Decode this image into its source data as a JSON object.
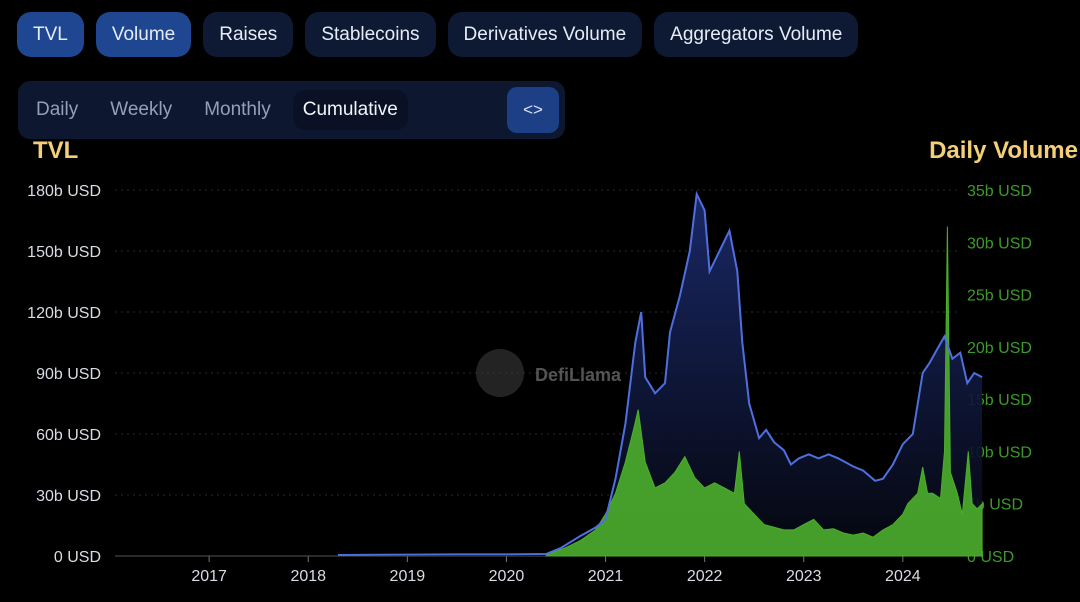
{
  "tabs": [
    {
      "label": "TVL",
      "active": true
    },
    {
      "label": "Volume",
      "active": true
    },
    {
      "label": "Raises",
      "active": false
    },
    {
      "label": "Stablecoins",
      "active": false
    },
    {
      "label": "Derivatives Volume",
      "active": false
    },
    {
      "label": "Aggregators Volume",
      "active": false
    }
  ],
  "range_options": [
    {
      "label": "Daily",
      "active": false
    },
    {
      "label": "Weekly",
      "active": false
    },
    {
      "label": "Monthly",
      "active": false
    },
    {
      "label": "Cumulative",
      "active": true
    }
  ],
  "embed_label": "<>",
  "watermark": "DefiLlama",
  "colors": {
    "tvl_line": "#4f6fe0",
    "tvl_fill_top": "#1b2a6b",
    "volume": "#4caf2c",
    "axis_left_text": "#d8dce4",
    "axis_right_text": "#3d9a2a",
    "axis_title": "#f3cf7a",
    "grid": "#2a2a2a"
  },
  "chart_data": {
    "type": "area",
    "x_axis": {
      "ticks": [
        "2017",
        "2018",
        "2019",
        "2020",
        "2021",
        "2022",
        "2023",
        "2024"
      ]
    },
    "y_left": {
      "title": "TVL",
      "ticks": [
        "0 USD",
        "30b USD",
        "60b USD",
        "90b USD",
        "120b USD",
        "150b USD",
        "180b USD"
      ],
      "range": [
        0,
        180
      ]
    },
    "y_right": {
      "title": "Daily Volume",
      "ticks": [
        "0 USD",
        "5b USD",
        "10b USD",
        "15b USD",
        "20b USD",
        "25b USD",
        "30b USD",
        "35b USD"
      ],
      "range": [
        0,
        35
      ]
    },
    "series": [
      {
        "name": "TVL",
        "axis": "left",
        "unit": "billion USD",
        "points": [
          [
            2018.3,
            0.5
          ],
          [
            2019.0,
            0.7
          ],
          [
            2019.5,
            0.8
          ],
          [
            2020.0,
            0.8
          ],
          [
            2020.4,
            1
          ],
          [
            2020.55,
            4
          ],
          [
            2020.75,
            10
          ],
          [
            2020.9,
            14
          ],
          [
            2021.0,
            18
          ],
          [
            2021.1,
            38
          ],
          [
            2021.2,
            65
          ],
          [
            2021.3,
            105
          ],
          [
            2021.36,
            120
          ],
          [
            2021.4,
            88
          ],
          [
            2021.5,
            80
          ],
          [
            2021.6,
            85
          ],
          [
            2021.65,
            110
          ],
          [
            2021.75,
            128
          ],
          [
            2021.85,
            150
          ],
          [
            2021.92,
            178
          ],
          [
            2022.0,
            170
          ],
          [
            2022.05,
            140
          ],
          [
            2022.15,
            150
          ],
          [
            2022.25,
            160
          ],
          [
            2022.33,
            140
          ],
          [
            2022.38,
            105
          ],
          [
            2022.45,
            75
          ],
          [
            2022.55,
            58
          ],
          [
            2022.62,
            62
          ],
          [
            2022.7,
            56
          ],
          [
            2022.8,
            52
          ],
          [
            2022.87,
            45
          ],
          [
            2022.95,
            48
          ],
          [
            2023.05,
            50
          ],
          [
            2023.15,
            48
          ],
          [
            2023.25,
            50
          ],
          [
            2023.35,
            48
          ],
          [
            2023.5,
            44
          ],
          [
            2023.6,
            42
          ],
          [
            2023.72,
            37
          ],
          [
            2023.8,
            38
          ],
          [
            2023.9,
            45
          ],
          [
            2024.0,
            55
          ],
          [
            2024.1,
            60
          ],
          [
            2024.2,
            90
          ],
          [
            2024.27,
            95
          ],
          [
            2024.35,
            102
          ],
          [
            2024.42,
            108
          ],
          [
            2024.5,
            97
          ],
          [
            2024.58,
            100
          ],
          [
            2024.65,
            85
          ],
          [
            2024.72,
            90
          ],
          [
            2024.8,
            88
          ]
        ]
      },
      {
        "name": "Daily Volume",
        "axis": "right",
        "unit": "billion USD",
        "points": [
          [
            2020.4,
            0.1
          ],
          [
            2020.6,
            0.8
          ],
          [
            2020.75,
            1.5
          ],
          [
            2020.9,
            2.5
          ],
          [
            2021.0,
            4
          ],
          [
            2021.1,
            6
          ],
          [
            2021.2,
            9
          ],
          [
            2021.28,
            12
          ],
          [
            2021.33,
            14
          ],
          [
            2021.4,
            9
          ],
          [
            2021.5,
            6.5
          ],
          [
            2021.6,
            7
          ],
          [
            2021.7,
            8
          ],
          [
            2021.8,
            9.5
          ],
          [
            2021.9,
            7.5
          ],
          [
            2022.0,
            6.5
          ],
          [
            2022.1,
            7
          ],
          [
            2022.2,
            6.5
          ],
          [
            2022.3,
            6
          ],
          [
            2022.35,
            10
          ],
          [
            2022.4,
            5
          ],
          [
            2022.5,
            4
          ],
          [
            2022.6,
            3
          ],
          [
            2022.8,
            2.5
          ],
          [
            2022.9,
            2.5
          ],
          [
            2023.0,
            3
          ],
          [
            2023.1,
            3.5
          ],
          [
            2023.2,
            2.5
          ],
          [
            2023.3,
            2.6
          ],
          [
            2023.4,
            2.2
          ],
          [
            2023.5,
            2
          ],
          [
            2023.6,
            2.2
          ],
          [
            2023.7,
            1.8
          ],
          [
            2023.8,
            2.5
          ],
          [
            2023.9,
            3
          ],
          [
            2024.0,
            4
          ],
          [
            2024.05,
            5
          ],
          [
            2024.15,
            6
          ],
          [
            2024.2,
            8.5
          ],
          [
            2024.25,
            6
          ],
          [
            2024.3,
            6
          ],
          [
            2024.38,
            5.5
          ],
          [
            2024.42,
            10
          ],
          [
            2024.45,
            31.5
          ],
          [
            2024.48,
            8
          ],
          [
            2024.55,
            6
          ],
          [
            2024.6,
            4
          ],
          [
            2024.66,
            10
          ],
          [
            2024.7,
            5
          ],
          [
            2024.75,
            4.5
          ],
          [
            2024.8,
            5
          ]
        ]
      }
    ]
  }
}
